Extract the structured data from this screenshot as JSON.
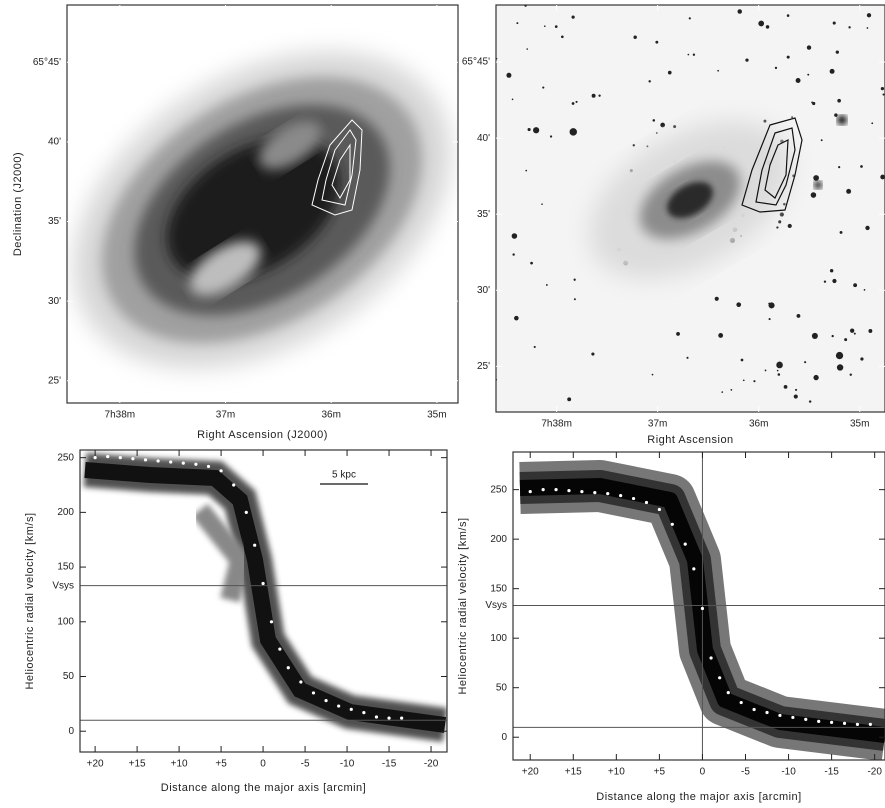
{
  "chart_data": [
    {
      "type": "image",
      "xlabel": "Right Ascension (J2000)",
      "ylabel": "Declination (J2000)",
      "xlim": [
        38.5,
        34.8
      ],
      "ylim": [
        23.6,
        48.6
      ],
      "xticks": [
        {
          "value": 38,
          "label": "7h38m"
        },
        {
          "value": 37,
          "label": "37m"
        },
        {
          "value": 36,
          "label": "36m"
        },
        {
          "value": 35,
          "label": "35m"
        }
      ],
      "yticks": [
        {
          "value": 45,
          "label": "65°45'"
        },
        {
          "value": 40,
          "label": "40'"
        },
        {
          "value": 35,
          "label": "35'"
        },
        {
          "value": 30,
          "label": "30'"
        },
        {
          "value": 25,
          "label": "25'"
        }
      ]
    },
    {
      "type": "image",
      "xlabel": "Right Ascension",
      "xlim": [
        38.6,
        34.75
      ],
      "ylim": [
        22,
        48.75
      ],
      "xticks": [
        {
          "value": 38,
          "label": "7h38m"
        },
        {
          "value": 37,
          "label": "37m"
        },
        {
          "value": 36,
          "label": "36m"
        },
        {
          "value": 35,
          "label": "35m"
        }
      ],
      "yticks": [
        {
          "value": 45,
          "label": "65°45'"
        },
        {
          "value": 40,
          "label": "40'"
        },
        {
          "value": 35,
          "label": "35'"
        },
        {
          "value": 30,
          "label": "30'"
        },
        {
          "value": 25,
          "label": "25'"
        }
      ]
    },
    {
      "type": "scatter",
      "xlabel": "Distance along the major axis [arcmin]",
      "ylabel": "Heliocentric radial velocity [km/s]",
      "xlim": [
        21.8,
        -21.9
      ],
      "ylim": [
        -19,
        257
      ],
      "xticks": [
        {
          "value": 20,
          "label": "+20"
        },
        {
          "value": 15,
          "label": "+15"
        },
        {
          "value": 10,
          "label": "+10"
        },
        {
          "value": 5,
          "label": "+5"
        },
        0,
        -5,
        -10,
        -15,
        -20
      ],
      "yticks": [
        0,
        50,
        100,
        150,
        200,
        250
      ],
      "hlines": [
        {
          "value": 133,
          "label": "Vsys"
        },
        10
      ],
      "scalebar": "5 kpc",
      "color": "#ffffff",
      "x": [
        20,
        18.5,
        17,
        15.5,
        14,
        12.5,
        11,
        9.5,
        8,
        6.5,
        5,
        3.5,
        2,
        1,
        0,
        -1,
        -2,
        -3,
        -4.5,
        -6,
        -7.5,
        -9,
        -10.5,
        -12,
        -13.5,
        -15,
        -16.5
      ],
      "values": [
        250,
        251,
        250,
        249,
        248,
        247,
        246,
        245,
        244,
        242,
        238,
        225,
        200,
        170,
        135,
        100,
        75,
        58,
        45,
        35,
        28,
        23,
        20,
        17,
        13,
        12,
        12
      ]
    },
    {
      "type": "scatter",
      "xlabel": "Distance along the major axis [arcmin]",
      "ylabel": "Heliocentric radial velocity [km/s]",
      "xlim": [
        22,
        -21.2
      ],
      "ylim": [
        -23,
        288
      ],
      "xticks": [
        {
          "value": 20,
          "label": "+20"
        },
        {
          "value": 15,
          "label": "+15"
        },
        {
          "value": 10,
          "label": "+10"
        },
        {
          "value": 5,
          "label": "+5"
        },
        0,
        -5,
        -10,
        -15,
        -20
      ],
      "yticks": [
        0,
        50,
        100,
        150,
        200,
        250
      ],
      "hlines": [
        {
          "value": 133,
          "label": "Vsys"
        },
        10
      ],
      "vlines": [
        0
      ],
      "color": "#ffffff",
      "x": [
        20,
        18.5,
        17,
        15.5,
        14,
        12.5,
        11,
        9.5,
        8,
        6.5,
        5,
        3.5,
        2,
        1,
        0,
        -1,
        -2,
        -3,
        -4.5,
        -6,
        -7.5,
        -9,
        -10.5,
        -12,
        -13.5,
        -15,
        -16.5,
        -18,
        -19.5
      ],
      "values": [
        248,
        250,
        250,
        249,
        248,
        247,
        246,
        244,
        241,
        237,
        230,
        215,
        195,
        170,
        130,
        80,
        60,
        45,
        35,
        28,
        25,
        22,
        20,
        18,
        16,
        15,
        14,
        13,
        13
      ]
    }
  ]
}
